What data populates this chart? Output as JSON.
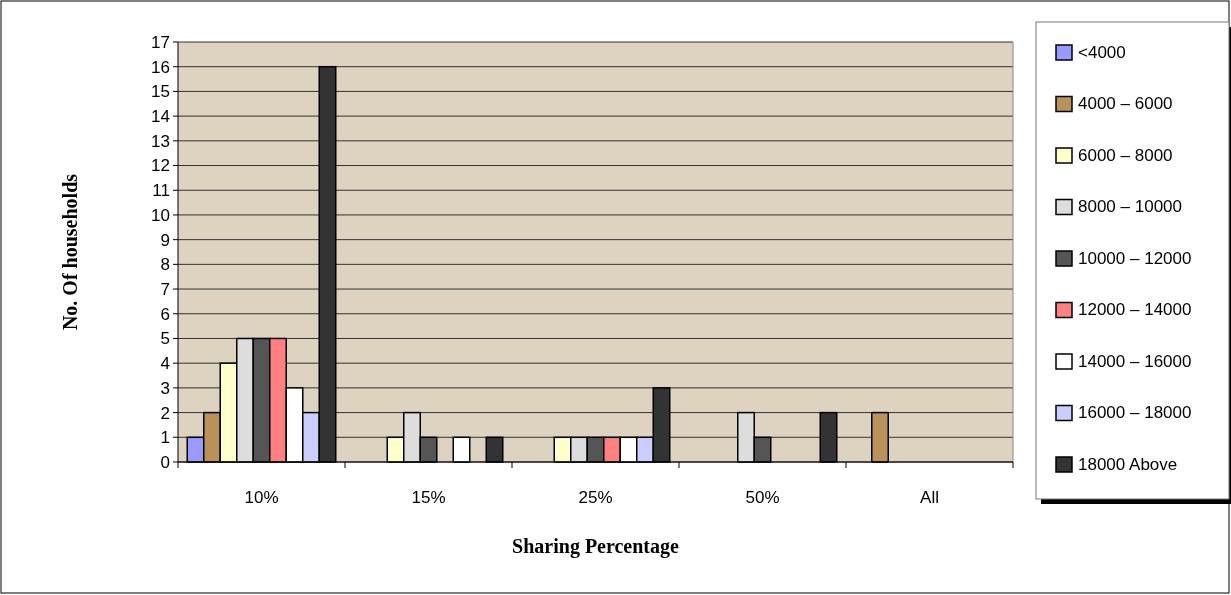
{
  "chart_data": {
    "type": "bar",
    "xlabel": "Sharing Percentage",
    "ylabel": "No. Of households",
    "categories": [
      "10%",
      "15%",
      "25%",
      "50%",
      "All"
    ],
    "series": [
      {
        "name": "<4000",
        "color": "#9999ff",
        "values": [
          1,
          0,
          0,
          0,
          0
        ]
      },
      {
        "name": "4000 – 6000",
        "color": "#b8925a",
        "values": [
          2,
          0,
          0,
          0,
          2
        ]
      },
      {
        "name": "6000 – 8000",
        "color": "#ffffcc",
        "values": [
          4,
          1,
          1,
          0,
          0
        ]
      },
      {
        "name": "8000 – 10000",
        "color": "#dddddd",
        "values": [
          5,
          2,
          1,
          2,
          0
        ]
      },
      {
        "name": "10000 – 12000",
        "color": "#555555",
        "values": [
          5,
          1,
          1,
          1,
          0
        ]
      },
      {
        "name": "12000 – 14000",
        "color": "#ff8080",
        "values": [
          5,
          0,
          1,
          0,
          0
        ]
      },
      {
        "name": "14000 – 16000",
        "color": "#ffffff",
        "values": [
          3,
          1,
          1,
          0,
          0
        ]
      },
      {
        "name": "16000 – 18000",
        "color": "#ccccff",
        "values": [
          2,
          0,
          1,
          0,
          0
        ]
      },
      {
        "name": "18000 Above",
        "color": "#333333",
        "values": [
          16,
          1,
          3,
          2,
          0
        ]
      }
    ],
    "ylim": [
      0,
      17
    ],
    "yticks": [
      0,
      1,
      2,
      3,
      4,
      5,
      6,
      7,
      8,
      9,
      10,
      11,
      12,
      13,
      14,
      15,
      16,
      17
    ],
    "grid": "y",
    "legend": "right"
  }
}
